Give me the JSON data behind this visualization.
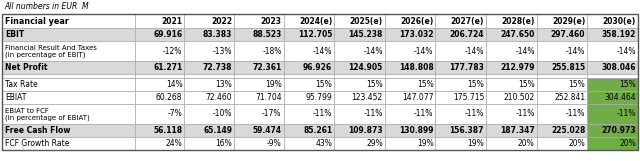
{
  "title": "All numbers in EUR  M",
  "columns": [
    "Financial year",
    "2021",
    "2022",
    "2023",
    "2024(e)",
    "2025(e)",
    "2026(e)",
    "2027(e)",
    "2028(e)",
    "2029(e)",
    "2030(e)"
  ],
  "rows": [
    {
      "label": "EBIT",
      "values": [
        "69.916",
        "83.383",
        "88.523",
        "112.705",
        "145.238",
        "173.032",
        "206.724",
        "247.650",
        "297.460",
        "358.192"
      ],
      "bold": true,
      "bg": "#d9d9d9",
      "spacer": false
    },
    {
      "label": "Financial Result And Taxes\n(in percentage of EBIT)",
      "values": [
        "-12%",
        "-13%",
        "-18%",
        "-14%",
        "-14%",
        "-14%",
        "-14%",
        "-14%",
        "-14%",
        "-14%"
      ],
      "bold": false,
      "bg": "#ffffff",
      "spacer": false
    },
    {
      "label": "Net Profit",
      "values": [
        "61.271",
        "72.738",
        "72.361",
        "96.926",
        "124.905",
        "148.808",
        "177.783",
        "212.979",
        "255.815",
        "308.046"
      ],
      "bold": true,
      "bg": "#d9d9d9",
      "spacer": false
    },
    {
      "label": "",
      "values": [
        "",
        "",
        "",
        "",
        "",
        "",
        "",
        "",
        "",
        ""
      ],
      "bold": false,
      "bg": "#ffffff",
      "spacer": true
    },
    {
      "label": "Tax Rate",
      "values": [
        "14%",
        "13%",
        "19%",
        "15%",
        "15%",
        "15%",
        "15%",
        "15%",
        "15%",
        "15%"
      ],
      "bold": false,
      "bg": "#ffffff",
      "spacer": false,
      "highlight_last": true
    },
    {
      "label": "EBIAT",
      "values": [
        "60.268",
        "72.460",
        "71.704",
        "95.799",
        "123.452",
        "147.077",
        "175.715",
        "210.502",
        "252.841",
        "304.464"
      ],
      "bold": false,
      "bg": "#ffffff",
      "spacer": false,
      "highlight_last": true
    },
    {
      "label": "EBIAT to FCF\n(in percentage of EBIAT)",
      "values": [
        "-7%",
        "-10%",
        "-17%",
        "-11%",
        "-11%",
        "-11%",
        "-11%",
        "-11%",
        "-11%",
        "-11%"
      ],
      "bold": false,
      "bg": "#ffffff",
      "spacer": false,
      "highlight_last": true
    },
    {
      "label": "Free Cash Flow",
      "values": [
        "56.118",
        "65.149",
        "59.474",
        "85.261",
        "109.873",
        "130.899",
        "156.387",
        "187.347",
        "225.028",
        "270.973"
      ],
      "bold": true,
      "bg": "#d9d9d9",
      "spacer": false,
      "highlight_last": true
    },
    {
      "label": "FCF Growth Rate",
      "values": [
        "24%",
        "16%",
        "-9%",
        "43%",
        "29%",
        "19%",
        "19%",
        "20%",
        "20%",
        "20%"
      ],
      "bold": false,
      "bg": "#ffffff",
      "spacer": false,
      "highlight_last": true
    }
  ],
  "highlight_col_bg": "#70ad47",
  "border_color": "#aaaaaa",
  "border_color_dark": "#555555",
  "text_color": "#000000",
  "fig_width": 6.4,
  "fig_height": 1.61,
  "dpi": 100
}
